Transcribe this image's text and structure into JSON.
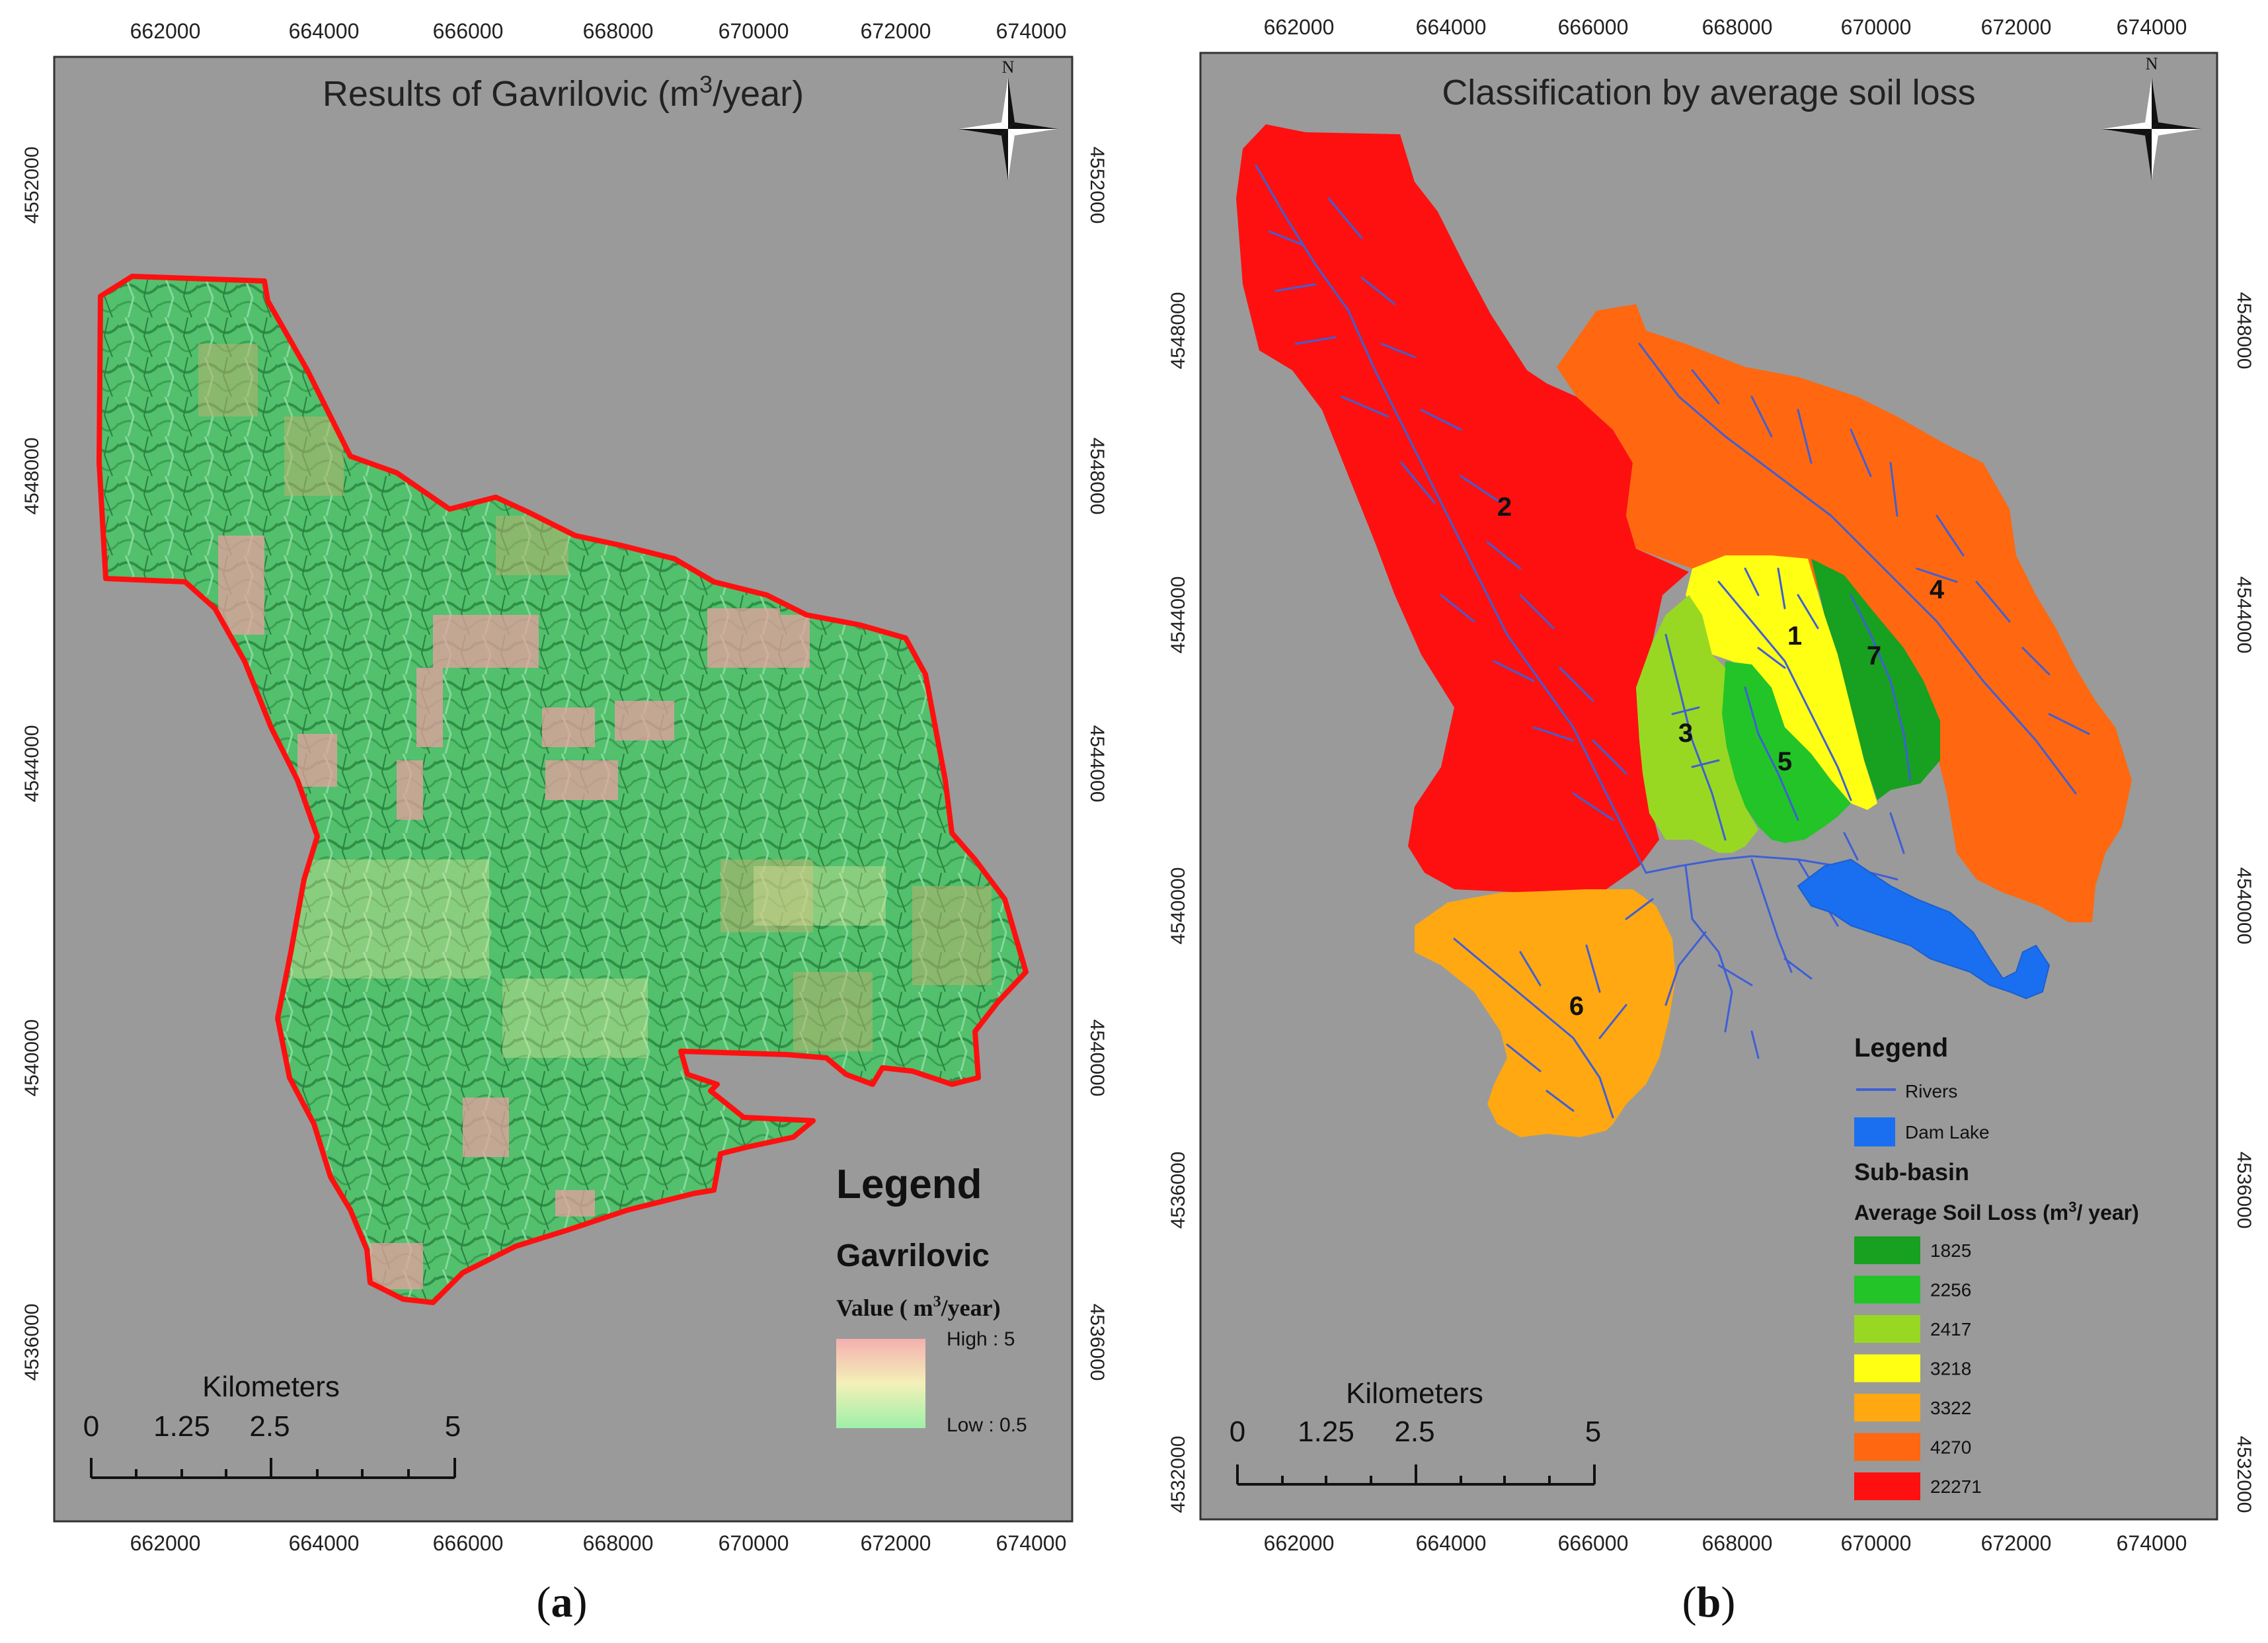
{
  "panel_a": {
    "title_pre": "Results of Gavrilovic (m",
    "title_sup": "3",
    "title_post": "/year)",
    "caption_letter": "a",
    "x_ticks": [
      "662000",
      "664000",
      "666000",
      "668000",
      "670000",
      "672000",
      "674000"
    ],
    "y_ticks": [
      "4552000",
      "4548000",
      "4544000",
      "4540000",
      "4536000"
    ],
    "legend_title": "Legend",
    "legend_layer": "Gavrilovic",
    "legend_value_pre": "Value  ( m",
    "legend_value_sup": "3",
    "legend_value_post": "/year)",
    "legend_high": "High : 5",
    "legend_low": "Low : 0.5",
    "scale_title": "Kilometers",
    "scale_labels": [
      "0",
      "1.25",
      "2.5",
      "5"
    ],
    "north_label": "N",
    "colors": {
      "map_bg": "#9a9a9a",
      "boundary": "#ff1010",
      "terrain_green": "#4fbf6a",
      "terrain_dark": "#2a8a43",
      "hotspot": "#e8a0a0"
    }
  },
  "panel_b": {
    "title": "Classification by average soil loss",
    "caption_letter": "b",
    "x_ticks": [
      "662000",
      "664000",
      "666000",
      "668000",
      "670000",
      "672000",
      "674000"
    ],
    "y_ticks": [
      "4548000",
      "4544000",
      "4540000",
      "4536000",
      "4532000"
    ],
    "north_label": "N",
    "basin_labels": [
      "1",
      "2",
      "3",
      "4",
      "5",
      "6",
      "7"
    ],
    "legend": {
      "title": "Legend",
      "rivers": "Rivers",
      "dam_lake": "Dam Lake",
      "subbasin": "Sub-basin",
      "avg_pre": "Average Soil Loss (m",
      "avg_sup": "3",
      "avg_post": "/ year)",
      "classes": [
        {
          "value": "1825",
          "color": "#18a020"
        },
        {
          "value": "2256",
          "color": "#22c428"
        },
        {
          "value": "2417",
          "color": "#98d822"
        },
        {
          "value": "3218",
          "color": "#ffff14"
        },
        {
          "value": "3322",
          "color": "#ffa812"
        },
        {
          "value": "4270",
          "color": "#ff6810"
        },
        {
          "value": "22271",
          "color": "#ff1010"
        }
      ]
    },
    "scale_title": "Kilometers",
    "scale_labels": [
      "0",
      "1.25",
      "2.5",
      "5"
    ],
    "colors": {
      "map_bg": "#9a9a9a",
      "river": "#3f5fd6",
      "lake": "#1a6ff0"
    }
  }
}
